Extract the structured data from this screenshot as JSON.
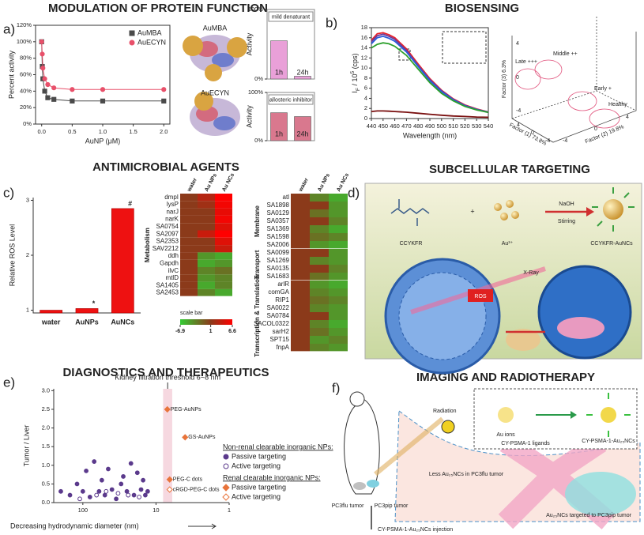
{
  "panel_labels": [
    "a)",
    "b)",
    "c)",
    "d)",
    "e)",
    "f)"
  ],
  "titles": [
    "MODULATION OF PROTEIN FUNCTION",
    "BIOSENSING",
    "ANTIMICROBIAL AGENTS",
    "SUBCELLULAR TARGETING",
    "DIAGNOSTICS AND THERAPEUTICS",
    "IMAGING AND RADIOTHERAPY"
  ],
  "protein_labels": [
    "AuMBA",
    "AuECYN"
  ],
  "pca": {
    "groups": [
      "Late +++",
      "Middle ++",
      "Early +",
      "Healthy"
    ],
    "axes": [
      {
        "label": "Factor (1) 73.8%",
        "ticks": [
          4,
          0,
          -4
        ]
      },
      {
        "label": "Factor (2) 19.8%",
        "ticks": [
          -4,
          0,
          4
        ]
      },
      {
        "label": "Factor (3) 6.3%",
        "ticks": [
          4,
          0,
          -4
        ]
      }
    ]
  },
  "targeting": {
    "ligand": "CCYKFR",
    "plus": "+",
    "gold": "Au³⁺",
    "reagent": "NaOH",
    "process": "Stirring",
    "product": "CCYKFR-AuNCs",
    "xray": "X-Ray",
    "ros": "ROS"
  },
  "imaging": {
    "radiation": "Radiation",
    "ions": "Au ions",
    "ligands": "CY-PSMA-1 ligands",
    "product": "CY-PSMA-1-Au₂₅NCs",
    "less": "Less Au₂₅NCs in PC3flu tumor",
    "targeted": "Au₂₅NCs targeted to PC3pip tumor",
    "flu": "PC3flu tumor",
    "pip": "PC3pip tumor",
    "injection": "CY-PSMA-1-Au₂₅NCs injection"
  },
  "chart_data": [
    {
      "type": "line",
      "x_label": "AuNP (μM)",
      "y_label": "Percent activity",
      "x": [
        0,
        0.01,
        0.02,
        0.05,
        0.1,
        0.2,
        0.5,
        1,
        2
      ],
      "series": [
        {
          "name": "AuMBA",
          "color": "#4a4a4a",
          "marker": "square",
          "values": [
            100,
            70,
            55,
            40,
            32,
            30,
            28,
            28,
            28
          ]
        },
        {
          "name": "AuECYN",
          "color": "#e8506a",
          "marker": "circle",
          "values": [
            100,
            85,
            68,
            55,
            48,
            44,
            42,
            42,
            42
          ]
        }
      ],
      "xlim": [
        -0.1,
        2.1
      ],
      "xticks": [
        {
          "value": 0,
          "label": "0.0"
        },
        {
          "value": 0.5,
          "label": "0.5"
        },
        {
          "value": 1,
          "label": "1.0"
        },
        {
          "value": 1.5,
          "label": "1.5"
        },
        {
          "value": 2,
          "label": "2.0"
        }
      ],
      "ylim": [
        0,
        120
      ],
      "yticks": [
        {
          "value": 0,
          "label": "0%"
        },
        {
          "value": 20,
          "label": "20%"
        },
        {
          "value": 40,
          "label": "40%"
        },
        {
          "value": 60,
          "label": "60%"
        },
        {
          "value": 80,
          "label": "80%"
        },
        {
          "value": 100,
          "label": "100%"
        },
        {
          "value": 120,
          "label": "120%"
        }
      ]
    },
    {
      "type": "bar",
      "title": "mild denaturant",
      "y_label": "Activity",
      "categories": [
        "1h",
        "24h"
      ],
      "values": [
        55,
        4
      ],
      "color": "#e9a0d8",
      "ylim": [
        0,
        100
      ],
      "yticks": [
        {
          "value": 0,
          "label": "0%"
        },
        {
          "value": 100,
          "label": "100%"
        }
      ]
    },
    {
      "type": "bar",
      "title": "allosteric inhibitor",
      "y_label": "Activity",
      "categories": [
        "1h",
        "24h"
      ],
      "values": [
        58,
        50
      ],
      "color": "#d9788e",
      "ylim": [
        0,
        100
      ],
      "yticks": [
        {
          "value": 0,
          "label": "0%"
        },
        {
          "value": 100,
          "label": "100%"
        }
      ]
    },
    {
      "type": "line",
      "x_label": "Wavelength (nm)",
      "y_label_parts": [
        "I",
        "F",
        " / 10",
        "5",
        " (cps)"
      ],
      "x": [
        440,
        445,
        450,
        455,
        460,
        470,
        480,
        490,
        500,
        510,
        520,
        530,
        540
      ],
      "series": [
        {
          "color": "#e8202a",
          "values": [
            15.5,
            16.8,
            17.0,
            16.6,
            16.0,
            13.8,
            10.8,
            7.9,
            5.6,
            3.9,
            2.7,
            1.9,
            1.3
          ]
        },
        {
          "color": "#6a3d9a",
          "values": [
            15.2,
            16.4,
            16.7,
            16.3,
            15.7,
            13.5,
            10.5,
            7.7,
            5.5,
            3.8,
            2.6,
            1.8,
            1.3
          ]
        },
        {
          "color": "#2a5cdb",
          "values": [
            14.8,
            16.0,
            16.3,
            15.9,
            15.3,
            13.2,
            10.3,
            7.5,
            5.3,
            3.7,
            2.5,
            1.8,
            1.2
          ]
        },
        {
          "color": "#2ca02c",
          "values": [
            14.0,
            14.7,
            15.0,
            14.8,
            14.3,
            12.5,
            9.8,
            7.1,
            5.0,
            3.5,
            2.4,
            1.7,
            1.2
          ]
        },
        {
          "color": "#7a1010",
          "values": [
            1.4,
            1.5,
            1.5,
            1.45,
            1.4,
            1.25,
            1.05,
            0.85,
            0.65,
            0.5,
            0.4,
            0.3,
            0.25
          ]
        }
      ],
      "xlim": [
        440,
        540
      ],
      "xticks": [
        440,
        450,
        460,
        470,
        480,
        490,
        500,
        510,
        520,
        530,
        540
      ],
      "ylim": [
        0,
        18
      ],
      "yticks": [
        0,
        2,
        4,
        6,
        8,
        10,
        12,
        14,
        16,
        18
      ]
    },
    {
      "type": "bar",
      "y_label": "Relative ROS Level",
      "categories": [
        "water",
        "AuNPs",
        "AuNCs"
      ],
      "values": [
        1,
        1.03,
        2.85
      ],
      "color": "#ee1111",
      "annotations": [
        {
          "category": "AuNPs",
          "text": "*"
        },
        {
          "category": "AuNCs",
          "text": "#"
        }
      ],
      "ylim": [
        0.95,
        3.05
      ],
      "yticks": [
        1,
        2,
        3
      ]
    },
    {
      "type": "heatmap",
      "columns": [
        "water",
        "Au NPs",
        "Au NCs"
      ],
      "colors": [
        "#33cc33",
        "#8b3a1a",
        "#ff0000"
      ],
      "scale": {
        "label": "scale bar",
        "ticks": [
          -6.9,
          1,
          6.6
        ]
      },
      "blocks": [
        {
          "groups": [
            {
              "name": "Metabolism",
              "rows": [
                "dmpI",
                "lysP",
                "narJ",
                "narK",
                "SA0754",
                "SA2097",
                "SA2353",
                "SAV2212",
                "ddh",
                "Gapdh",
                "ilvC",
                "mtlD",
                "SA1405",
                "SA2453"
              ],
              "values": [
                [
                  1,
                  3,
                  6.6
                ],
                [
                  1,
                  2,
                  6
                ],
                [
                  1,
                  1,
                  5.5
                ],
                [
                  1,
                  1,
                  6
                ],
                [
                  1,
                  1,
                  5
                ],
                [
                  1,
                  4,
                  6.6
                ],
                [
                  1,
                  1,
                  5
                ],
                [
                  1,
                  1,
                  4
                ],
                [
                  1,
                  -4,
                  -5
                ],
                [
                  1,
                  -5,
                  -4
                ],
                [
                  1,
                  -3,
                  -2
                ],
                [
                  1,
                  -4,
                  -3
                ],
                [
                  1,
                  -5,
                  -3
                ],
                [
                  1,
                  -3,
                  -5
                ]
              ]
            }
          ]
        },
        {
          "groups": [
            {
              "name": "Membrane",
              "rows": [
                "atl",
                "SA1898",
                "SA0129",
                "SA0357",
                "SA1369",
                "SA1598",
                "SA2006"
              ],
              "values": [
                [
                  1,
                  -3,
                  -5
                ],
                [
                  1,
                  1,
                  -4
                ],
                [
                  1,
                  -2,
                  -4
                ],
                [
                  1,
                  1,
                  -3
                ],
                [
                  1,
                  -3,
                  -5
                ],
                [
                  1,
                  -2,
                  -3
                ],
                [
                  1,
                  -4,
                  -5
                ]
              ]
            },
            {
              "name": "Transport",
              "rows": [
                "SA0099",
                "SA1269",
                "SA0135",
                "SA1683"
              ],
              "values": [
                [
                  1,
                  1,
                  -4
                ],
                [
                  1,
                  -3,
                  -4
                ],
                [
                  1,
                  1,
                  -3
                ],
                [
                  1,
                  -2,
                  -4
                ]
              ]
            },
            {
              "name": "Transcription & Translation",
              "rows": [
                "arlR",
                "comGA",
                "RIP1",
                "SA0022",
                "SA0784",
                "SACOL0322",
                "sarH2",
                "SPT15",
                "fnpA"
              ],
              "values": [
                [
                  1,
                  -4,
                  -5
                ],
                [
                  1,
                  -3,
                  -4
                ],
                [
                  1,
                  -2,
                  -3
                ],
                [
                  1,
                  -3,
                  -4
                ],
                [
                  1,
                  1,
                  -4
                ],
                [
                  1,
                  -3,
                  -5
                ],
                [
                  1,
                  -2,
                  -4
                ],
                [
                  1,
                  -4,
                  -3
                ],
                [
                  1,
                  -3,
                  -4
                ]
              ]
            }
          ]
        }
      ]
    },
    {
      "type": "scatter",
      "x_label": "Decreasing hydrodynamic diameter (nm)",
      "y_label": "Tumor / Liver",
      "annotation": "Kidney filtration threshold 6~8 nm",
      "band": [
        6,
        8
      ],
      "log_x": true,
      "groups": [
        {
          "title": "Non-renal clearable inorganic NPs:",
          "series": [
            {
              "name": "Passive targeting",
              "color": "#5b3a8c",
              "marker": "circle",
              "filled": true,
              "x": [
                200,
                150,
                120,
                100,
                90,
                80,
                70,
                60,
                55,
                50,
                45,
                40,
                35,
                30,
                28,
                25,
                22,
                20,
                18,
                16,
                15,
                14,
                13
              ],
              "values": [
                0.3,
                0.2,
                0.5,
                0.3,
                0.85,
                0.15,
                1.1,
                0.3,
                0.6,
                0.2,
                0.9,
                0.35,
                0.1,
                0.5,
                0.7,
                0.3,
                1.05,
                0.2,
                0.8,
                0.35,
                0.6,
                0.2,
                0.3
              ]
            },
            {
              "name": "Active targeting",
              "color": "#5b3a8c",
              "marker": "circle",
              "filled": false,
              "x": [
                110,
                65,
                48,
                33,
                24,
                17
              ],
              "values": [
                0.1,
                0.2,
                0.3,
                0.25,
                0.2,
                0.15
              ]
            }
          ]
        },
        {
          "title": "Renal clearable inorganic NPs:",
          "series": [
            {
              "name": "Passive targeting",
              "color": "#e8743b",
              "marker": "diamond",
              "filled": true,
              "x": [
                7,
                4,
                6.5
              ],
              "values": [
                2.5,
                1.75,
                0.62
              ],
              "labels": [
                "PEG-AuNPs",
                "GS-AuNPs",
                "PEG-C dots"
              ]
            },
            {
              "name": "Active targeting",
              "color": "#e8743b",
              "marker": "diamond",
              "filled": false,
              "x": [
                6.5
              ],
              "values": [
                0.35
              ],
              "labels": [
                "cRGD-PEG-C dots"
              ]
            }
          ]
        }
      ],
      "xlim": [
        250,
        1
      ],
      "xticks": [
        100,
        10,
        1
      ],
      "ylim": [
        0,
        3.05
      ],
      "yticks": [
        {
          "value": 0,
          "label": "0.0"
        },
        {
          "value": 0.5,
          "label": "0.5"
        },
        {
          "value": 1,
          "label": "1.0"
        },
        {
          "value": 1.5,
          "label": "1.5"
        },
        {
          "value": 2,
          "label": "2.0"
        },
        {
          "value": 2.5,
          "label": "2.5"
        },
        {
          "value": 3,
          "label": "3.0"
        }
      ]
    }
  ]
}
